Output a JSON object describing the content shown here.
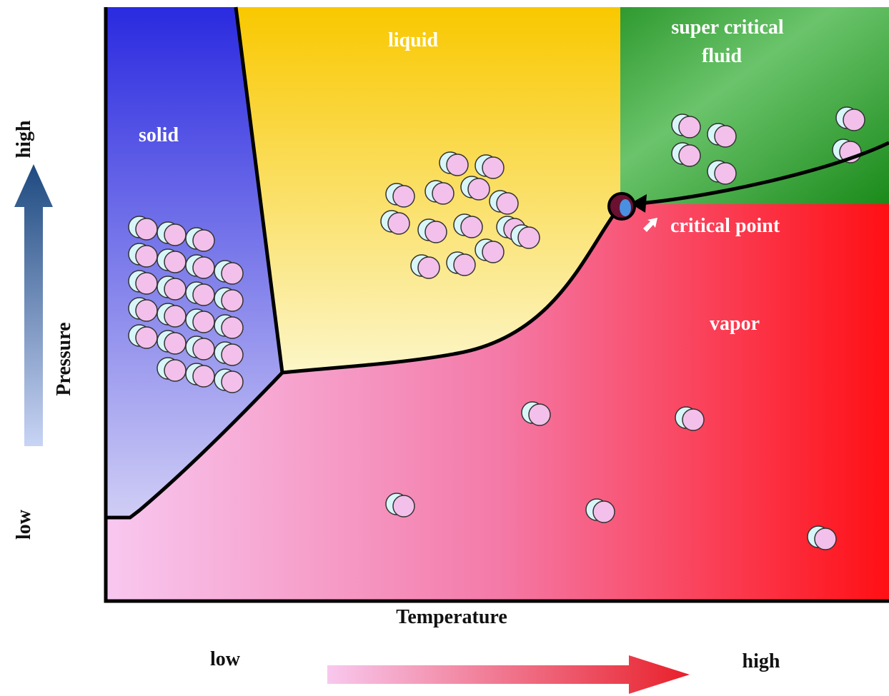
{
  "labels": {
    "solid": "solid",
    "liquid": "liquid",
    "supercritical": [
      "super critical",
      "fluid"
    ],
    "critical_point": "critical point",
    "vapor": "vapor"
  },
  "y_axis": {
    "title": "Pressure",
    "high": "high",
    "low": "low"
  },
  "x_axis": {
    "title": "Temperature",
    "low": "low",
    "high": "high"
  }
}
